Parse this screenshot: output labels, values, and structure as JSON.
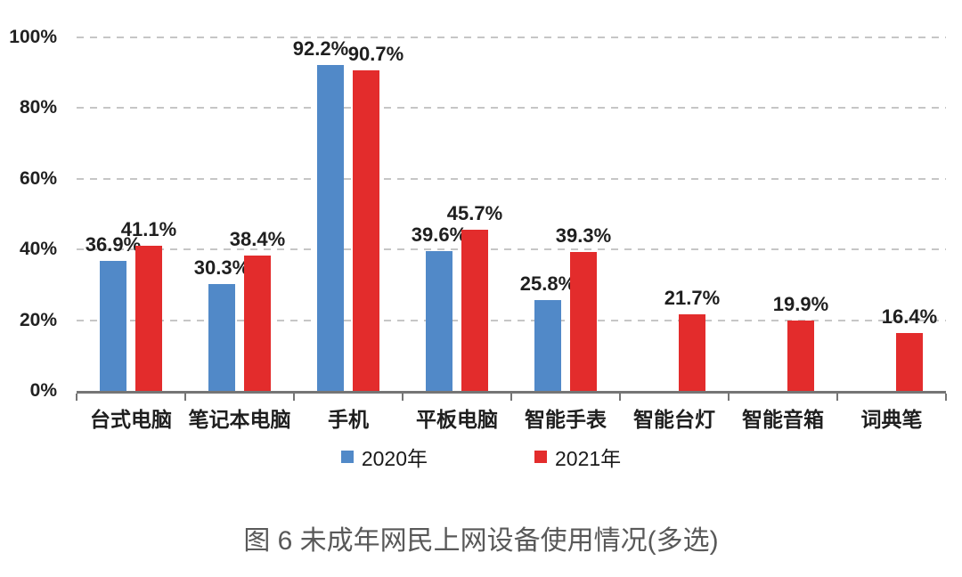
{
  "chart_data": {
    "type": "bar",
    "title": "",
    "categories": [
      "台式电脑",
      "笔记本电脑",
      "手机",
      "平板电脑",
      "智能手表",
      "智能台灯",
      "智能音箱",
      "词典笔"
    ],
    "series": [
      {
        "name": "2020年",
        "color": "#5189C8",
        "values": [
          36.9,
          30.3,
          92.2,
          39.6,
          25.8,
          null,
          null,
          null
        ]
      },
      {
        "name": "2021年",
        "color": "#E32C2C",
        "values": [
          41.1,
          38.4,
          90.7,
          45.7,
          39.3,
          21.7,
          19.9,
          16.4
        ]
      }
    ],
    "value_suffix": "%",
    "xlabel": "",
    "ylabel": "",
    "ylim": [
      0,
      100
    ],
    "yticks": [
      0,
      20,
      40,
      60,
      80,
      100
    ],
    "ytick_labels": [
      "0%",
      "20%",
      "40%",
      "60%",
      "80%",
      "100%"
    ],
    "grid": "horizontal-dashed",
    "legend_position": "bottom",
    "data_labels": "outside-end"
  },
  "colors": {
    "blue_2020": "#5189C8",
    "red_2021": "#E32C2C",
    "gridline": "#C6C6C6",
    "axis": "#757575",
    "label_text": "#1F1F1F",
    "caption_text": "#595959"
  },
  "caption": "图 6 未成年网民上网设备使用情况(多选)"
}
